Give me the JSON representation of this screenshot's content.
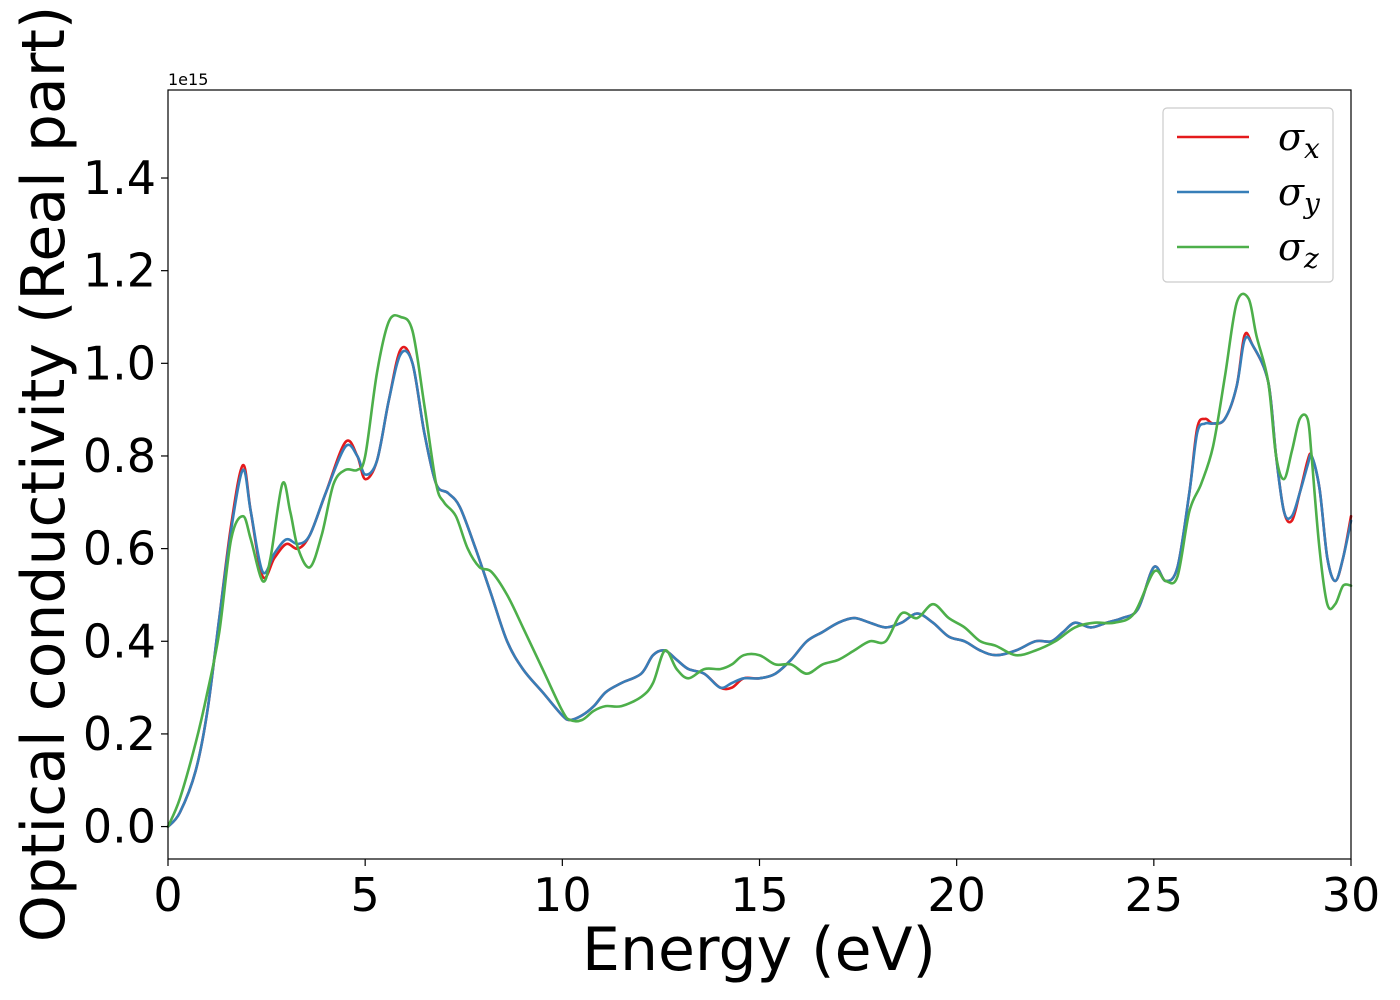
{
  "chart_data": {
    "type": "line",
    "xlabel": "Energy (eV)",
    "ylabel": "Optical conductivity (Real part)",
    "y_offset_text": "1e15",
    "xlim": [
      0,
      30
    ],
    "ylim": [
      -0.07,
      1.59
    ],
    "x_ticks": [
      0,
      5,
      10,
      15,
      20,
      25,
      30
    ],
    "x_tick_labels": [
      "0",
      "5",
      "10",
      "15",
      "20",
      "25",
      "30"
    ],
    "y_ticks": [
      0.0,
      0.2,
      0.4,
      0.6,
      0.8,
      1.0,
      1.2,
      1.4
    ],
    "y_tick_labels": [
      "0.0",
      "0.2",
      "0.4",
      "0.6",
      "0.8",
      "1.0",
      "1.2",
      "1.4"
    ],
    "grid": false,
    "legend_position": "top-right",
    "series": [
      {
        "name": "σx",
        "base": "σ",
        "sub": "x",
        "color": "#e41a1c",
        "x": [
          0,
          0.3,
          0.7,
          1.0,
          1.3,
          1.6,
          1.9,
          2.1,
          2.4,
          2.7,
          3.0,
          3.3,
          3.6,
          4.0,
          4.5,
          4.8,
          5.0,
          5.3,
          5.6,
          5.9,
          6.2,
          6.5,
          6.8,
          7.1,
          7.4,
          7.8,
          8.2,
          8.6,
          9.0,
          9.5,
          10.0,
          10.2,
          10.5,
          10.8,
          11.1,
          11.5,
          12.0,
          12.3,
          12.6,
          12.9,
          13.2,
          13.6,
          14.0,
          14.3,
          14.6,
          15.0,
          15.4,
          15.8,
          16.2,
          16.6,
          17.0,
          17.4,
          17.8,
          18.2,
          18.6,
          19.0,
          19.4,
          19.8,
          20.2,
          20.6,
          21.0,
          21.5,
          22.0,
          22.4,
          22.7,
          23.0,
          23.4,
          23.8,
          24.2,
          24.6,
          25.0,
          25.3,
          25.6,
          25.9,
          26.1,
          26.3,
          26.5,
          26.8,
          27.1,
          27.3,
          27.5,
          27.9,
          28.1,
          28.3,
          28.5,
          28.7,
          28.9,
          29.0,
          29.2,
          29.4,
          29.6,
          29.8,
          30.0
        ],
        "values": [
          0.0,
          0.03,
          0.12,
          0.25,
          0.45,
          0.65,
          0.78,
          0.68,
          0.54,
          0.58,
          0.61,
          0.6,
          0.63,
          0.72,
          0.83,
          0.8,
          0.75,
          0.79,
          0.92,
          1.03,
          1.0,
          0.85,
          0.74,
          0.72,
          0.69,
          0.6,
          0.5,
          0.4,
          0.34,
          0.29,
          0.24,
          0.23,
          0.24,
          0.26,
          0.29,
          0.31,
          0.33,
          0.37,
          0.38,
          0.36,
          0.34,
          0.33,
          0.3,
          0.3,
          0.32,
          0.32,
          0.33,
          0.36,
          0.4,
          0.42,
          0.44,
          0.45,
          0.44,
          0.43,
          0.44,
          0.46,
          0.44,
          0.41,
          0.4,
          0.38,
          0.37,
          0.38,
          0.4,
          0.4,
          0.42,
          0.44,
          0.43,
          0.44,
          0.45,
          0.47,
          0.56,
          0.53,
          0.56,
          0.72,
          0.86,
          0.88,
          0.87,
          0.88,
          0.95,
          1.06,
          1.04,
          0.96,
          0.8,
          0.68,
          0.66,
          0.72,
          0.79,
          0.8,
          0.73,
          0.58,
          0.53,
          0.58,
          0.67
        ]
      },
      {
        "name": "σy",
        "base": "σ",
        "sub": "y",
        "color": "#377eb8",
        "x": [
          0,
          0.3,
          0.7,
          1.0,
          1.3,
          1.6,
          1.9,
          2.1,
          2.4,
          2.7,
          3.0,
          3.3,
          3.6,
          4.0,
          4.5,
          4.8,
          5.0,
          5.3,
          5.6,
          5.9,
          6.2,
          6.5,
          6.8,
          7.1,
          7.4,
          7.8,
          8.2,
          8.6,
          9.0,
          9.5,
          10.0,
          10.2,
          10.5,
          10.8,
          11.1,
          11.5,
          12.0,
          12.3,
          12.6,
          12.9,
          13.2,
          13.6,
          14.0,
          14.3,
          14.6,
          15.0,
          15.4,
          15.8,
          16.2,
          16.6,
          17.0,
          17.4,
          17.8,
          18.2,
          18.6,
          19.0,
          19.4,
          19.8,
          20.2,
          20.6,
          21.0,
          21.5,
          22.0,
          22.4,
          22.7,
          23.0,
          23.4,
          23.8,
          24.2,
          24.6,
          25.0,
          25.3,
          25.6,
          25.9,
          26.1,
          26.3,
          26.5,
          26.8,
          27.1,
          27.3,
          27.5,
          27.9,
          28.1,
          28.3,
          28.5,
          28.7,
          28.9,
          29.0,
          29.2,
          29.4,
          29.6,
          29.8,
          30.0
        ],
        "values": [
          0.0,
          0.03,
          0.12,
          0.25,
          0.45,
          0.64,
          0.77,
          0.68,
          0.55,
          0.59,
          0.62,
          0.61,
          0.63,
          0.72,
          0.82,
          0.8,
          0.76,
          0.79,
          0.92,
          1.02,
          1.0,
          0.85,
          0.74,
          0.72,
          0.69,
          0.6,
          0.5,
          0.4,
          0.34,
          0.29,
          0.24,
          0.23,
          0.24,
          0.26,
          0.29,
          0.31,
          0.33,
          0.37,
          0.38,
          0.36,
          0.34,
          0.33,
          0.3,
          0.31,
          0.32,
          0.32,
          0.33,
          0.36,
          0.4,
          0.42,
          0.44,
          0.45,
          0.44,
          0.43,
          0.44,
          0.46,
          0.44,
          0.41,
          0.4,
          0.38,
          0.37,
          0.38,
          0.4,
          0.4,
          0.42,
          0.44,
          0.43,
          0.44,
          0.45,
          0.47,
          0.56,
          0.53,
          0.56,
          0.72,
          0.85,
          0.87,
          0.87,
          0.88,
          0.95,
          1.05,
          1.04,
          0.96,
          0.8,
          0.68,
          0.67,
          0.72,
          0.78,
          0.8,
          0.73,
          0.58,
          0.53,
          0.58,
          0.66
        ]
      },
      {
        "name": "σz",
        "base": "σ",
        "sub": "z",
        "color": "#4daf4a",
        "x": [
          0,
          0.3,
          0.7,
          1.0,
          1.3,
          1.6,
          1.9,
          2.1,
          2.4,
          2.6,
          2.9,
          3.1,
          3.3,
          3.6,
          3.9,
          4.2,
          4.5,
          4.8,
          5.0,
          5.3,
          5.6,
          5.9,
          6.2,
          6.5,
          6.8,
          7.0,
          7.3,
          7.6,
          7.9,
          8.2,
          8.6,
          9.0,
          9.5,
          10.0,
          10.2,
          10.5,
          10.8,
          11.1,
          11.5,
          12.0,
          12.3,
          12.6,
          12.9,
          13.2,
          13.6,
          14.0,
          14.3,
          14.6,
          15.0,
          15.4,
          15.8,
          16.2,
          16.6,
          17.0,
          17.4,
          17.8,
          18.2,
          18.6,
          19.0,
          19.4,
          19.8,
          20.2,
          20.6,
          21.0,
          21.5,
          22.0,
          22.5,
          23.0,
          23.5,
          24.0,
          24.5,
          25.0,
          25.3,
          25.6,
          25.9,
          26.2,
          26.5,
          26.8,
          27.1,
          27.4,
          27.6,
          27.9,
          28.1,
          28.3,
          28.5,
          28.7,
          28.9,
          29.0,
          29.2,
          29.4,
          29.6,
          29.8,
          30.0
        ],
        "values": [
          0.0,
          0.06,
          0.18,
          0.29,
          0.42,
          0.62,
          0.67,
          0.62,
          0.53,
          0.58,
          0.74,
          0.68,
          0.6,
          0.56,
          0.63,
          0.74,
          0.77,
          0.77,
          0.8,
          0.98,
          1.09,
          1.1,
          1.07,
          0.91,
          0.74,
          0.7,
          0.67,
          0.6,
          0.56,
          0.55,
          0.5,
          0.43,
          0.34,
          0.25,
          0.23,
          0.23,
          0.25,
          0.26,
          0.26,
          0.28,
          0.31,
          0.38,
          0.34,
          0.32,
          0.34,
          0.34,
          0.35,
          0.37,
          0.37,
          0.35,
          0.35,
          0.33,
          0.35,
          0.36,
          0.38,
          0.4,
          0.4,
          0.46,
          0.45,
          0.48,
          0.45,
          0.43,
          0.4,
          0.39,
          0.37,
          0.38,
          0.4,
          0.43,
          0.44,
          0.44,
          0.46,
          0.55,
          0.53,
          0.54,
          0.68,
          0.74,
          0.82,
          0.97,
          1.13,
          1.14,
          1.06,
          0.96,
          0.8,
          0.75,
          0.81,
          0.88,
          0.88,
          0.8,
          0.6,
          0.48,
          0.48,
          0.52,
          0.52
        ]
      }
    ]
  }
}
